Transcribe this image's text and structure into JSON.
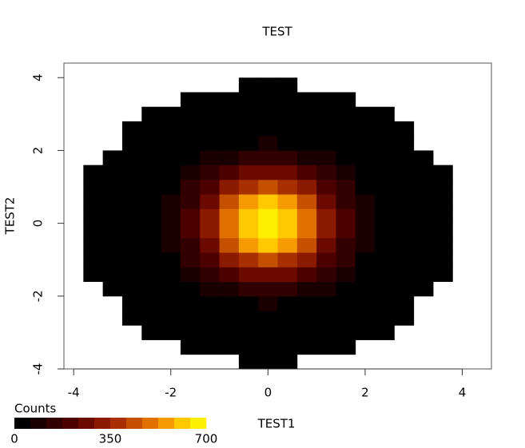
{
  "chart_data": {
    "type": "heatmap",
    "title": "TEST",
    "x_label": "TEST1",
    "y_label": "TEST2",
    "xlim": [
      -4.2,
      4.6
    ],
    "ylim": [
      -4,
      4.4
    ],
    "xticks": [
      -4,
      -2,
      0,
      2,
      4
    ],
    "yticks": [
      -4,
      -2,
      0,
      2,
      4
    ],
    "x_bins": [
      -4.2,
      -3.8,
      -3.4,
      -3.0,
      -2.6,
      -2.2,
      -1.8,
      -1.4,
      -1.0,
      -0.6,
      -0.2,
      0.2,
      0.6,
      1.0,
      1.4,
      1.8,
      2.2,
      2.6,
      3.0,
      3.4,
      3.8,
      4.2,
      4.6
    ],
    "y_bins": [
      -4.0,
      -3.6,
      -3.2,
      -2.8,
      -2.4,
      -2.0,
      -1.6,
      -1.2,
      -0.8,
      -0.4,
      0.0,
      0.4,
      0.8,
      1.2,
      1.6,
      2.0,
      2.4,
      2.8,
      3.2,
      3.6,
      4.0,
      4.4
    ],
    "counts": [
      [
        0,
        0,
        0,
        0,
        0,
        0,
        0,
        0,
        0,
        1,
        1,
        1,
        0,
        0,
        0,
        0,
        0,
        0,
        0,
        0,
        0,
        0
      ],
      [
        0,
        0,
        0,
        0,
        0,
        0,
        1,
        1,
        2,
        2,
        2,
        2,
        2,
        1,
        1,
        0,
        0,
        0,
        0,
        0,
        0,
        0
      ],
      [
        0,
        0,
        0,
        0,
        1,
        1,
        2,
        4,
        6,
        7,
        8,
        7,
        6,
        4,
        2,
        1,
        1,
        0,
        0,
        0,
        0,
        0
      ],
      [
        0,
        0,
        0,
        1,
        1,
        3,
        7,
        12,
        17,
        22,
        24,
        22,
        17,
        12,
        7,
        3,
        1,
        1,
        0,
        0,
        0,
        0
      ],
      [
        0,
        0,
        0,
        1,
        3,
        8,
        17,
        30,
        45,
        57,
        62,
        57,
        45,
        30,
        17,
        8,
        3,
        1,
        0,
        0,
        0,
        0
      ],
      [
        0,
        0,
        1,
        3,
        8,
        19,
        39,
        68,
        101,
        128,
        139,
        128,
        101,
        68,
        39,
        19,
        8,
        3,
        1,
        0,
        0,
        0
      ],
      [
        0,
        1,
        2,
        5,
        15,
        35,
        73,
        128,
        191,
        242,
        263,
        242,
        191,
        128,
        73,
        35,
        15,
        5,
        2,
        1,
        0,
        0
      ],
      [
        0,
        1,
        3,
        8,
        24,
        57,
        118,
        207,
        308,
        392,
        425,
        392,
        308,
        207,
        118,
        57,
        24,
        8,
        3,
        1,
        0,
        0
      ],
      [
        0,
        1,
        3,
        12,
        33,
        79,
        162,
        285,
        424,
        539,
        584,
        539,
        424,
        285,
        162,
        79,
        33,
        12,
        3,
        1,
        0,
        0
      ],
      [
        0,
        1,
        4,
        14,
        38,
        93,
        191,
        334,
        498,
        633,
        686,
        633,
        498,
        334,
        191,
        93,
        38,
        14,
        4,
        1,
        0,
        0
      ],
      [
        0,
        1,
        4,
        14,
        38,
        93,
        191,
        334,
        498,
        633,
        686,
        633,
        498,
        334,
        191,
        93,
        38,
        14,
        4,
        1,
        0,
        0
      ],
      [
        0,
        1,
        3,
        12,
        33,
        79,
        162,
        285,
        424,
        539,
        584,
        539,
        424,
        285,
        162,
        79,
        33,
        12,
        3,
        1,
        0,
        0
      ],
      [
        0,
        1,
        3,
        8,
        24,
        57,
        118,
        207,
        308,
        392,
        425,
        392,
        308,
        207,
        118,
        57,
        24,
        8,
        3,
        1,
        0,
        0
      ],
      [
        0,
        1,
        2,
        5,
        15,
        35,
        73,
        128,
        191,
        242,
        263,
        242,
        191,
        128,
        73,
        35,
        15,
        5,
        2,
        1,
        0,
        0
      ],
      [
        0,
        0,
        1,
        3,
        8,
        19,
        39,
        68,
        101,
        128,
        139,
        128,
        101,
        68,
        39,
        19,
        8,
        3,
        1,
        0,
        0,
        0
      ],
      [
        0,
        0,
        0,
        1,
        3,
        8,
        17,
        30,
        45,
        57,
        62,
        57,
        45,
        30,
        17,
        8,
        3,
        1,
        0,
        0,
        0,
        0
      ],
      [
        0,
        0,
        0,
        1,
        1,
        3,
        7,
        12,
        17,
        22,
        24,
        22,
        17,
        12,
        7,
        3,
        1,
        1,
        0,
        0,
        0,
        0
      ],
      [
        0,
        0,
        0,
        0,
        1,
        1,
        2,
        4,
        6,
        7,
        8,
        7,
        6,
        4,
        2,
        1,
        1,
        0,
        0,
        0,
        0,
        0
      ],
      [
        0,
        0,
        0,
        0,
        0,
        0,
        1,
        1,
        2,
        2,
        2,
        2,
        2,
        1,
        1,
        0,
        0,
        0,
        0,
        0,
        0,
        0
      ],
      [
        0,
        0,
        0,
        0,
        0,
        0,
        0,
        0,
        0,
        1,
        1,
        1,
        0,
        0,
        0,
        0,
        0,
        0,
        0,
        0,
        0,
        0
      ],
      [
        0,
        0,
        0,
        0,
        0,
        0,
        0,
        0,
        0,
        0,
        0,
        0,
        0,
        0,
        0,
        0,
        0,
        0,
        0,
        0,
        0,
        0
      ]
    ],
    "colorbar": {
      "title": "Counts",
      "range": [
        0,
        700
      ],
      "ticks": [
        0,
        350,
        700
      ],
      "colors": [
        "#000000",
        "#1a0000",
        "#330000",
        "#4d0000",
        "#6b0a00",
        "#8b1a00",
        "#a83000",
        "#c45000",
        "#e07000",
        "#f59a00",
        "#ffc800",
        "#ffef00"
      ]
    }
  }
}
